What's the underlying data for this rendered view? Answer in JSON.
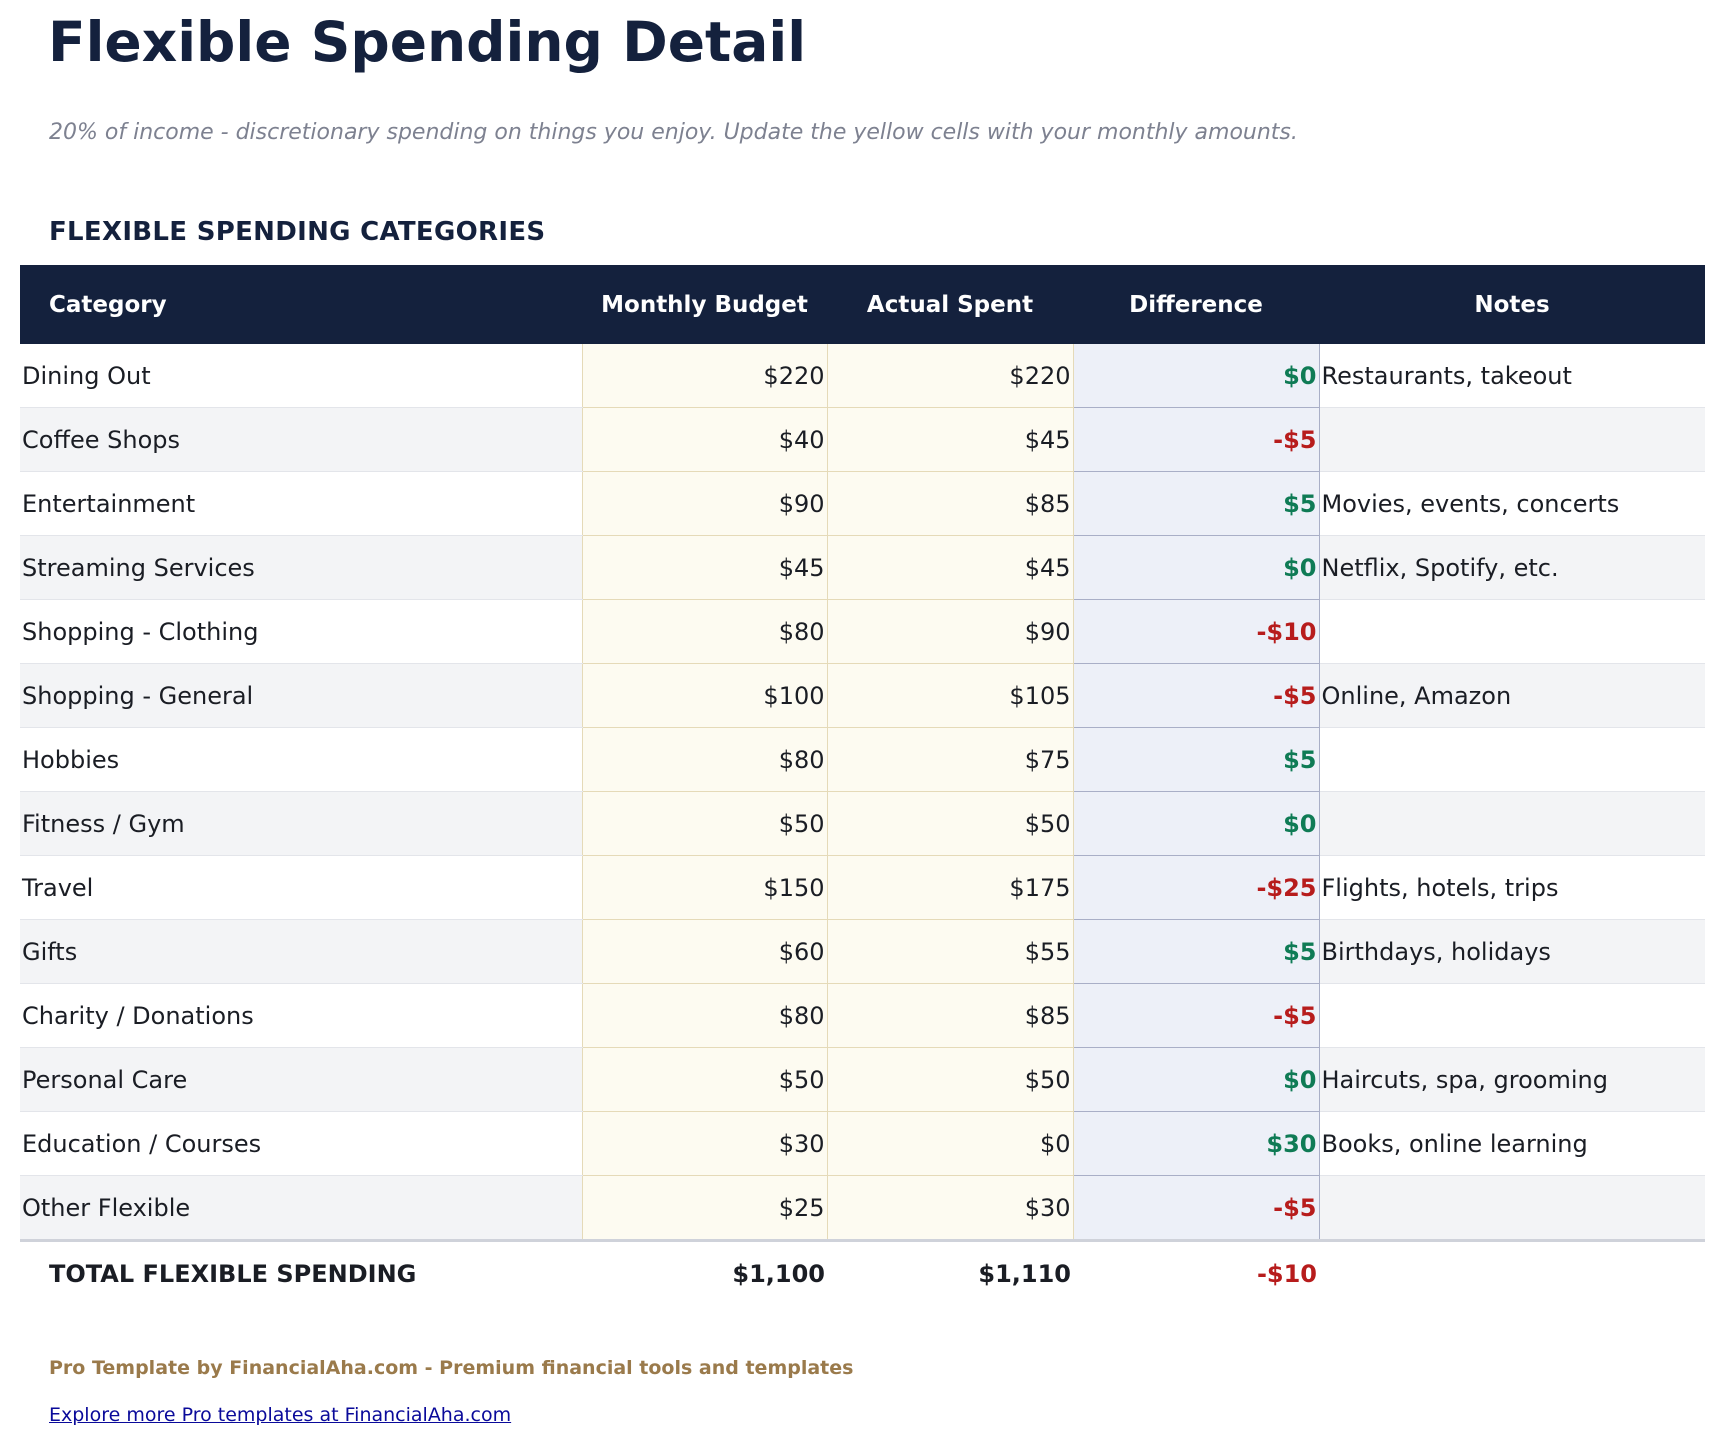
{
  "title": "Flexible Spending Detail",
  "subtitle": "20% of income - discretionary spending on things you enjoy. Update the yellow cells with your monthly amounts.",
  "section_heading": "FLEXIBLE SPENDING CATEGORIES",
  "colors": {
    "header_bg": "#14213d",
    "input_cell": "#fdfbf1",
    "formula_cell": "#edf0f8",
    "positive": "#0f7b55",
    "negative": "#b71c1c"
  },
  "table": {
    "headers": [
      "Category",
      "Monthly Budget",
      "Actual Spent",
      "Difference",
      "Notes"
    ],
    "rows": [
      {
        "category": "Dining Out",
        "budget": "$220",
        "actual": "$220",
        "difference": "$0",
        "sign": "pos",
        "notes": "Restaurants, takeout"
      },
      {
        "category": "Coffee Shops",
        "budget": "$40",
        "actual": "$45",
        "difference": "-$5",
        "sign": "neg",
        "notes": ""
      },
      {
        "category": "Entertainment",
        "budget": "$90",
        "actual": "$85",
        "difference": "$5",
        "sign": "pos",
        "notes": "Movies, events, concerts"
      },
      {
        "category": "Streaming Services",
        "budget": "$45",
        "actual": "$45",
        "difference": "$0",
        "sign": "pos",
        "notes": "Netflix, Spotify, etc."
      },
      {
        "category": "Shopping - Clothing",
        "budget": "$80",
        "actual": "$90",
        "difference": "-$10",
        "sign": "neg",
        "notes": ""
      },
      {
        "category": "Shopping - General",
        "budget": "$100",
        "actual": "$105",
        "difference": "-$5",
        "sign": "neg",
        "notes": "Online, Amazon"
      },
      {
        "category": "Hobbies",
        "budget": "$80",
        "actual": "$75",
        "difference": "$5",
        "sign": "pos",
        "notes": ""
      },
      {
        "category": "Fitness / Gym",
        "budget": "$50",
        "actual": "$50",
        "difference": "$0",
        "sign": "pos",
        "notes": ""
      },
      {
        "category": "Travel",
        "budget": "$150",
        "actual": "$175",
        "difference": "-$25",
        "sign": "neg",
        "notes": "Flights, hotels, trips"
      },
      {
        "category": "Gifts",
        "budget": "$60",
        "actual": "$55",
        "difference": "$5",
        "sign": "pos",
        "notes": "Birthdays, holidays"
      },
      {
        "category": "Charity / Donations",
        "budget": "$80",
        "actual": "$85",
        "difference": "-$5",
        "sign": "neg",
        "notes": ""
      },
      {
        "category": "Personal Care",
        "budget": "$50",
        "actual": "$50",
        "difference": "$0",
        "sign": "pos",
        "notes": "Haircuts, spa, grooming"
      },
      {
        "category": "Education / Courses",
        "budget": "$30",
        "actual": "$0",
        "difference": "$30",
        "sign": "pos",
        "notes": "Books, online learning"
      },
      {
        "category": "Other Flexible",
        "budget": "$25",
        "actual": "$30",
        "difference": "-$5",
        "sign": "neg",
        "notes": ""
      }
    ],
    "total": {
      "label": "TOTAL FLEXIBLE SPENDING",
      "budget": "$1,100",
      "actual": "$1,110",
      "difference": "-$10",
      "sign": "neg"
    }
  },
  "footer": {
    "credit": "Pro Template by FinancialAha.com - Premium financial tools and templates",
    "link": "Explore more Pro templates at FinancialAha.com"
  }
}
